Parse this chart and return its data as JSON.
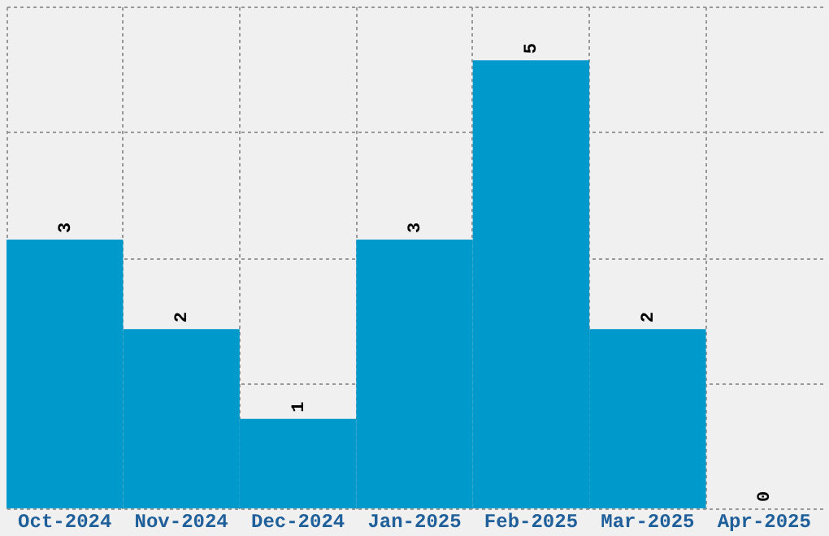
{
  "chart_data": {
    "type": "bar",
    "categories": [
      "Oct-2024",
      "Nov-2024",
      "Dec-2024",
      "Jan-2025",
      "Feb-2025",
      "Mar-2025",
      "Apr-2025"
    ],
    "values": [
      3,
      2,
      1,
      3,
      5,
      2,
      0
    ],
    "color": "#0099cc",
    "ylim": [
      0,
      5.6
    ],
    "yticks": [
      {
        "value": 0,
        "label": null
      },
      {
        "value": 1.4,
        "label": null
      },
      {
        "value": 2.8,
        "label": null
      },
      {
        "value": 4.2,
        "label": null
      },
      {
        "value": 5.6,
        "label": null
      }
    ],
    "tick_labels": "x",
    "grid": true,
    "data_labels": true
  }
}
